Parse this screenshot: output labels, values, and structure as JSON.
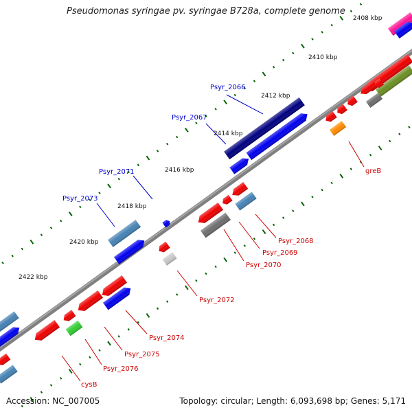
{
  "header": {
    "title": "Pseudomonas syringae pv. syringae B728a, complete genome"
  },
  "footer": {
    "accession": "Accession: NC_007005",
    "topology": "Topology: circular; Length: 6,093,698 bp; Genes: 5,171"
  },
  "ticks": [
    "2408 kbp",
    "2410 kbp",
    "2412 kbp",
    "2414 kbp",
    "2416 kbp",
    "2418 kbp",
    "2420 kbp",
    "2422 kbp"
  ],
  "genes_top": [
    "Psyr_2066",
    "Psyr_2067",
    "Psyr_2071",
    "Psyr_2073"
  ],
  "genes_bottom": [
    "greB",
    "Psyr_2068",
    "Psyr_2069",
    "Psyr_2070",
    "Psyr_2072",
    "Psyr_2074",
    "Psyr_2075",
    "Psyr_2076",
    "cysB"
  ],
  "colors": {
    "forward_label": "#0000cc",
    "reverse_label": "#cc0000",
    "navy": "#000080",
    "blue": "#0000ee",
    "steelblue": "#4682b4",
    "red": "#ee0000",
    "gray": "#6e6e6e",
    "lightgray": "#c8c8c8",
    "orange": "#ff8c00",
    "green": "#33cc33",
    "olive": "#6b8e23",
    "magenta": "#ff1493",
    "tick": "#006400",
    "backbone": "#808080"
  }
}
